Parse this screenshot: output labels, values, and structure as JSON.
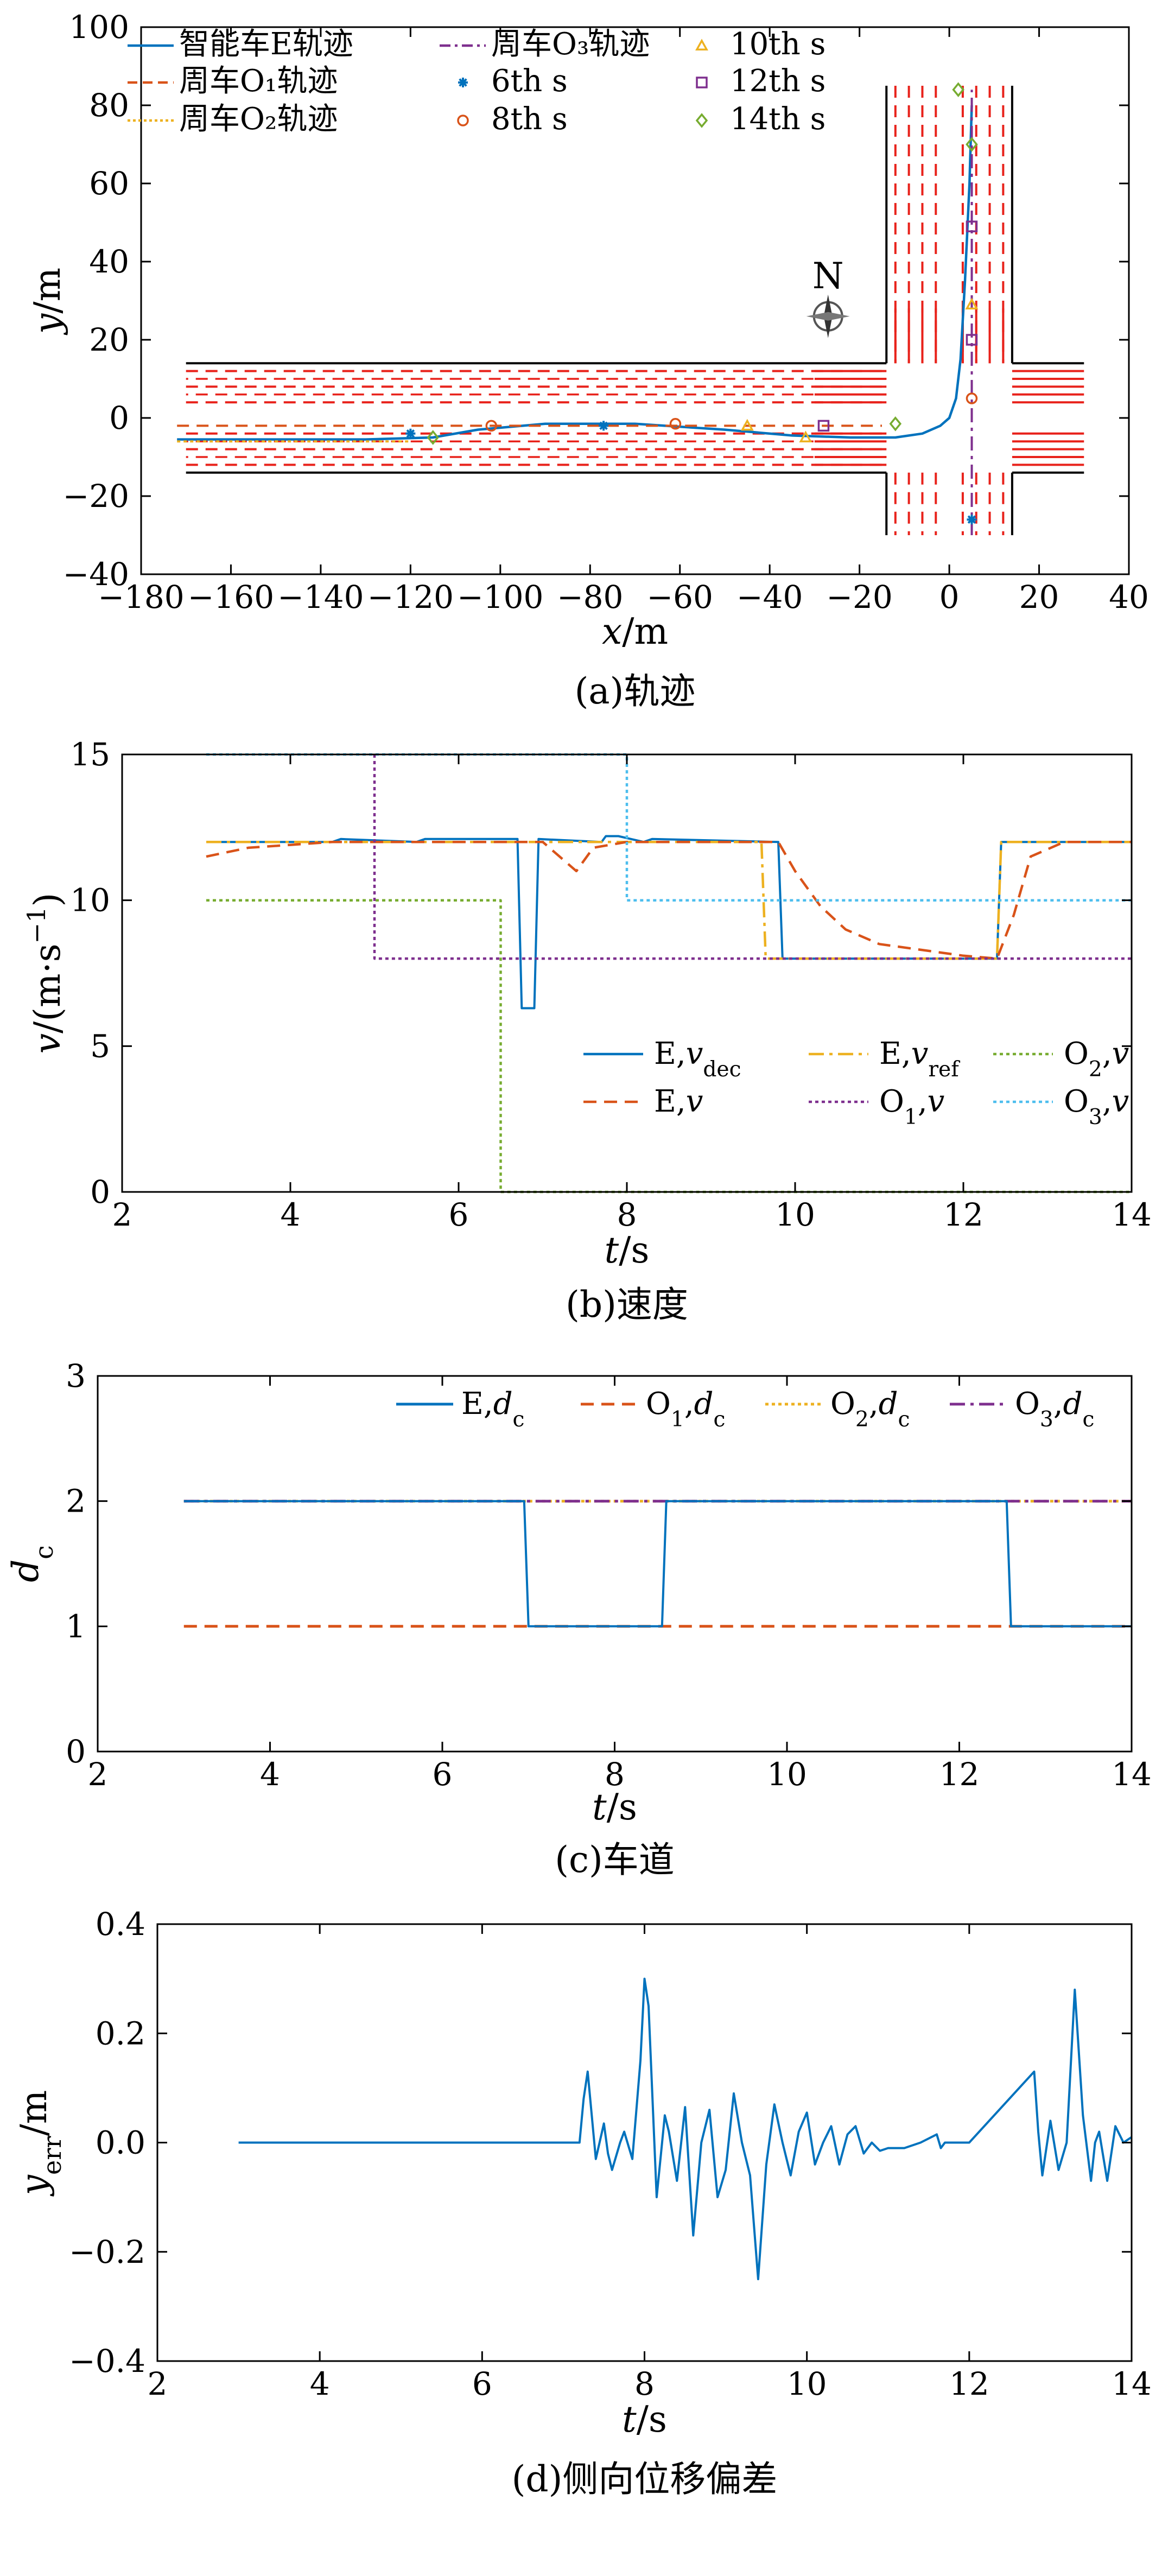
{
  "colors": {
    "E": "#0072BD",
    "O1": "#D95319",
    "O2": "#EDB120",
    "O3": "#7E2F8E",
    "O2v": "#77AC30",
    "O3v": "#4DBEEE",
    "road_red": "#E8221B",
    "road_black": "#000000"
  },
  "chart_data": [
    {
      "id": "a",
      "type": "line",
      "caption": "(a)轨迹",
      "xlabel_italic": "x",
      "xlabel_unit": "/m",
      "ylabel_italic": "y",
      "ylabel_unit": "/m",
      "xlim": [
        -180,
        40
      ],
      "ylim": [
        -40,
        100
      ],
      "xticks": [
        -180,
        -160,
        -140,
        -120,
        -100,
        -80,
        -60,
        -40,
        -20,
        0,
        20,
        40
      ],
      "yticks": [
        -40,
        -20,
        0,
        20,
        40,
        60,
        80,
        100
      ],
      "grid": false,
      "legend_position": "top-left",
      "compass_label": "N",
      "legend": [
        {
          "key": "E",
          "label": "智能车E轨迹"
        },
        {
          "key": "O3",
          "label": "周车O₃轨迹"
        },
        {
          "key": "t10",
          "label": "10th s"
        },
        {
          "key": "O1",
          "label": "周车O₁轨迹"
        },
        {
          "key": "t6",
          "label": "6th s"
        },
        {
          "key": "t12",
          "label": "12th s"
        },
        {
          "key": "O2",
          "label": "周车O₂轨迹"
        },
        {
          "key": "t8",
          "label": "8th s"
        },
        {
          "key": "t14",
          "label": "14th s"
        }
      ],
      "road": {
        "horizontal_edges_y": [
          -14,
          14
        ],
        "horizontal_x_end": -14,
        "horizontal_solid_red_y": [
          -10,
          -6,
          10,
          6
        ],
        "vertical_edges_x": [
          -14,
          14
        ],
        "vertical_y_start": 14
      },
      "series": [
        {
          "key": "E",
          "x": [
            -172,
            -150,
            -130,
            -115,
            -105,
            -90,
            -70,
            -50,
            -35,
            -22,
            -12,
            -6,
            -2,
            0,
            1.5,
            2.5,
            3.5,
            4.5,
            5
          ],
          "y": [
            -5.5,
            -5.5,
            -5.5,
            -5,
            -3,
            -1.5,
            -1.5,
            -3,
            -4.5,
            -5,
            -5,
            -4,
            -2,
            0,
            5,
            15,
            35,
            60,
            80
          ]
        },
        {
          "key": "O1",
          "x": [
            -172,
            -100,
            -20,
            -15
          ],
          "y": [
            -2,
            -2,
            -2,
            -2
          ]
        },
        {
          "key": "O2",
          "x": [
            -172,
            -120
          ],
          "y": [
            -6,
            -6
          ]
        },
        {
          "key": "O3",
          "x": [
            5,
            5
          ],
          "y": [
            -30,
            84
          ]
        }
      ],
      "markers": [
        {
          "time": "6th s",
          "key": "t6",
          "points": [
            [
              -120,
              -4
            ],
            [
              -77,
              -2
            ],
            [
              5,
              -26
            ]
          ]
        },
        {
          "time": "8th s",
          "key": "t8",
          "points": [
            [
              -102,
              -2
            ],
            [
              -61,
              -1.5
            ],
            [
              5,
              5
            ]
          ]
        },
        {
          "time": "10th s",
          "key": "t10",
          "points": [
            [
              -45,
              -2
            ],
            [
              -32,
              -5
            ],
            [
              5,
              29
            ]
          ]
        },
        {
          "time": "12th s",
          "key": "t12",
          "points": [
            [
              -28,
              -2
            ],
            [
              5,
              20
            ],
            [
              5,
              49
            ]
          ]
        },
        {
          "time": "14th s",
          "key": "t14",
          "points": [
            [
              -115,
              -5
            ],
            [
              -12,
              -1.5
            ],
            [
              2,
              84
            ],
            [
              5,
              70
            ]
          ]
        }
      ]
    },
    {
      "id": "b",
      "type": "line",
      "caption": "(b)速度",
      "xlabel_italic": "t",
      "xlabel_unit": "/s",
      "ylabel_html": "v/(m·s⁻¹)",
      "xlim": [
        2,
        14
      ],
      "ylim": [
        0,
        15
      ],
      "xticks": [
        2,
        4,
        6,
        8,
        10,
        12,
        14
      ],
      "yticks": [
        0,
        5,
        10,
        15
      ],
      "grid": false,
      "legend_position": "bottom-right",
      "legend": [
        {
          "key": "Evdec",
          "label": "E,",
          "sub": "dec",
          "var": "v"
        },
        {
          "key": "Evref",
          "label": "E,",
          "sub": "ref",
          "var": "v"
        },
        {
          "key": "O2v",
          "label": "O",
          "subnum": "2",
          "var": "v"
        },
        {
          "key": "Ev",
          "label": "E,",
          "var": "v"
        },
        {
          "key": "O1v",
          "label": "O",
          "subnum": "1",
          "var": "v"
        },
        {
          "key": "O3v",
          "label": "O",
          "subnum": "3",
          "var": "v"
        }
      ],
      "series": [
        {
          "key": "Evdec",
          "name": "E,vdec",
          "x": [
            3,
            4.5,
            4.6,
            5.5,
            5.6,
            6.7,
            6.75,
            6.9,
            6.95,
            7.7,
            7.75,
            7.9,
            8.2,
            8.3,
            9.8,
            9.85,
            11.5,
            12.4,
            12.45,
            14
          ],
          "y": [
            12,
            12,
            12.1,
            12,
            12.1,
            12.1,
            6.3,
            6.3,
            12.1,
            12,
            12.2,
            12.2,
            12,
            12.1,
            12,
            8,
            8,
            8,
            12,
            12
          ]
        },
        {
          "key": "Evref",
          "name": "E,vref",
          "x": [
            3,
            9.6,
            9.65,
            12.4,
            12.45,
            14
          ],
          "y": [
            12,
            12,
            8,
            8,
            12,
            12
          ]
        },
        {
          "key": "Ev",
          "name": "E,v",
          "x": [
            3,
            3.5,
            4,
            4.5,
            5,
            6,
            7,
            7.2,
            7.4,
            7.6,
            8,
            9,
            9.8,
            10,
            10.3,
            10.6,
            11,
            11.5,
            12,
            12.4,
            12.6,
            12.8,
            13.2,
            14
          ],
          "y": [
            11.5,
            11.8,
            11.9,
            12,
            12,
            12,
            12,
            11.5,
            11,
            11.8,
            12,
            12,
            12,
            11,
            9.8,
            9,
            8.5,
            8.3,
            8.1,
            8,
            9.5,
            11.5,
            12,
            12
          ]
        },
        {
          "key": "O1v",
          "name": "O1,v",
          "x": [
            5,
            5,
            14
          ],
          "y": [
            15,
            8,
            8
          ]
        },
        {
          "key": "O2v",
          "name": "O2,v",
          "x": [
            3,
            6.5,
            6.5,
            14
          ],
          "y": [
            10,
            10,
            0,
            0
          ]
        },
        {
          "key": "O3v",
          "name": "O3,v",
          "x": [
            3,
            8,
            8,
            14
          ],
          "y": [
            15,
            15,
            10,
            10
          ]
        }
      ]
    },
    {
      "id": "c",
      "type": "line",
      "caption": "(c)车道",
      "xlabel_italic": "t",
      "xlabel_unit": "/s",
      "ylabel_italic": "d",
      "ylabel_sub": "c",
      "xlim": [
        2,
        14
      ],
      "ylim": [
        0,
        3
      ],
      "xticks": [
        2,
        4,
        6,
        8,
        10,
        12,
        14
      ],
      "yticks": [
        0,
        1,
        2,
        3
      ],
      "grid": false,
      "legend_position": "top-right",
      "legend": [
        {
          "key": "Edc",
          "label": "E,"
        },
        {
          "key": "O1dc",
          "label": "O",
          "subnum": "1"
        },
        {
          "key": "O2dc",
          "label": "O",
          "subnum": "2"
        },
        {
          "key": "O3dc",
          "label": "O",
          "subnum": "3"
        }
      ],
      "series": [
        {
          "key": "Edc",
          "name": "E,dc",
          "x": [
            3,
            6.95,
            7,
            8.55,
            8.6,
            12.55,
            12.6,
            14
          ],
          "y": [
            2,
            2,
            1,
            1,
            2,
            2,
            1,
            1
          ]
        },
        {
          "key": "O1dc",
          "name": "O1,dc",
          "x": [
            3,
            14
          ],
          "y": [
            1,
            1
          ]
        },
        {
          "key": "O2dc",
          "name": "O2,dc",
          "x": [
            3,
            14
          ],
          "y": [
            2,
            2
          ]
        },
        {
          "key": "O3dc",
          "name": "O3,dc",
          "x": [
            3,
            14
          ],
          "y": [
            2,
            2
          ]
        }
      ]
    },
    {
      "id": "d",
      "type": "line",
      "caption": "(d)侧向位移偏差",
      "xlabel_italic": "t",
      "xlabel_unit": "/s",
      "ylabel_italic": "y",
      "ylabel_sub": "err",
      "ylabel_unit": "/m",
      "xlim": [
        2,
        14
      ],
      "ylim": [
        -0.4,
        0.4
      ],
      "xticks": [
        2,
        4,
        6,
        8,
        10,
        12,
        14
      ],
      "yticks": [
        -0.4,
        -0.2,
        0.0,
        0.2,
        0.4
      ],
      "ytick_labels": [
        "−0.4",
        "−0.2",
        "0.0",
        "0.2",
        "0.4"
      ],
      "grid": false,
      "series": [
        {
          "key": "yerr",
          "x": [
            3,
            7.2,
            7.25,
            7.3,
            7.4,
            7.5,
            7.55,
            7.6,
            7.7,
            7.75,
            7.85,
            7.95,
            8.0,
            8.05,
            8.15,
            8.25,
            8.3,
            8.4,
            8.5,
            8.6,
            8.7,
            8.8,
            8.9,
            9.0,
            9.1,
            9.2,
            9.3,
            9.4,
            9.5,
            9.6,
            9.7,
            9.8,
            9.9,
            10.0,
            10.1,
            10.2,
            10.3,
            10.4,
            10.5,
            10.6,
            10.7,
            10.8,
            10.9,
            11.0,
            11.2,
            11.4,
            11.6,
            11.65,
            11.7,
            11.8,
            12.0,
            12.8,
            12.85,
            12.9,
            13.0,
            13.1,
            13.2,
            13.3,
            13.4,
            13.5,
            13.55,
            13.6,
            13.7,
            13.8,
            13.9,
            14.0
          ],
          "y": [
            0,
            0,
            0.08,
            0.13,
            -0.03,
            0.035,
            -0.02,
            -0.05,
            0.0,
            0.02,
            -0.03,
            0.15,
            0.3,
            0.25,
            -0.1,
            0.05,
            0.02,
            -0.07,
            0.065,
            -0.17,
            0.0,
            0.06,
            -0.1,
            -0.05,
            0.09,
            0.0,
            -0.06,
            -0.25,
            -0.04,
            0.07,
            0.0,
            -0.06,
            0.02,
            0.055,
            -0.04,
            0.0,
            0.03,
            -0.04,
            0.015,
            0.03,
            -0.02,
            0.0,
            -0.015,
            -0.01,
            -0.01,
            0.0,
            0.015,
            -0.01,
            0.0,
            0.0,
            0,
            0.13,
            0.02,
            -0.06,
            0.04,
            -0.05,
            0.0,
            0.28,
            0.05,
            -0.07,
            0.0,
            0.02,
            -0.07,
            0.03,
            0.0,
            0.01
          ]
        }
      ]
    }
  ]
}
